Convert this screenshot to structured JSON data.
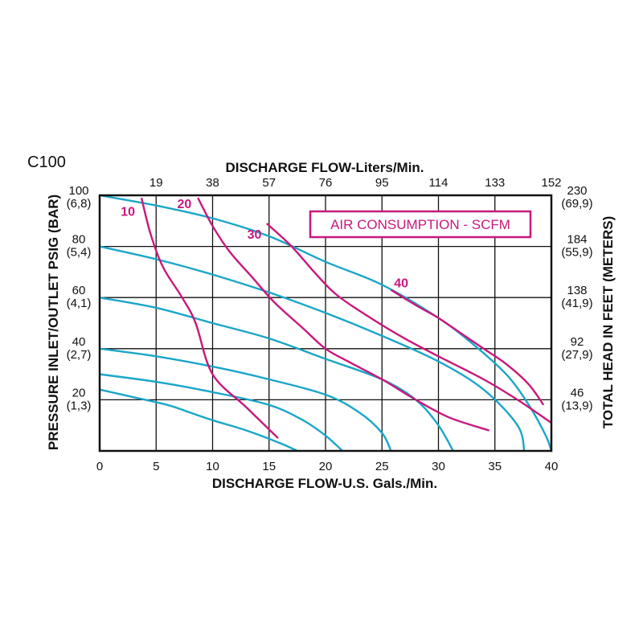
{
  "chart_data": {
    "type": "line",
    "title": "C100",
    "xlabel": "DISCHARGE FLOW-U.S. Gals./Min.",
    "x2label": "DISCHARGE FLOW-Liters/Min.",
    "ylabel": "PRESSURE INLET/OUTLET PSIG (BAR)",
    "y2label": "TOTAL HEAD IN FEET (METERS)",
    "legend_title": "AIR CONSUMPTION - SCFM",
    "xlim": [
      0,
      40
    ],
    "ylim": [
      0,
      100
    ],
    "grid": true,
    "x_ticks": [
      0,
      5,
      10,
      15,
      20,
      25,
      30,
      35,
      40
    ],
    "x_tick_labels": [
      "0",
      "5",
      "10",
      "15",
      "20",
      "25",
      "30",
      "35",
      "40"
    ],
    "x2_ticks": [
      5,
      10,
      15,
      20,
      25,
      30,
      35,
      40
    ],
    "x2_tick_labels": [
      "19",
      "38",
      "57",
      "76",
      "95",
      "114",
      "133",
      "152"
    ],
    "y_ticks": [
      20,
      40,
      60,
      80,
      100
    ],
    "y_tick_labels": [
      "20",
      "40",
      "60",
      "80",
      "100"
    ],
    "y_tick_sublabels": [
      "(1,3)",
      "(2,7)",
      "(4,1)",
      "(5,4)",
      "(6,8)"
    ],
    "y2_tick_labels": [
      "46",
      "92",
      "138",
      "184",
      "230"
    ],
    "y2_tick_sublabels": [
      "(13,9)",
      "(27,9)",
      "(41,9)",
      "(55,9)",
      "(69,9)"
    ],
    "colors": {
      "performance": "#1aa6c8",
      "air": "#c8187d",
      "grid": "#111111"
    },
    "performance_curves": [
      {
        "points": [
          [
            0,
            100
          ],
          [
            5,
            96
          ],
          [
            10,
            91
          ],
          [
            15,
            84
          ],
          [
            20,
            74
          ],
          [
            25,
            65
          ],
          [
            30,
            52
          ],
          [
            33,
            42
          ],
          [
            36,
            30
          ],
          [
            38,
            18
          ],
          [
            39.5,
            6
          ],
          [
            40,
            0
          ]
        ]
      },
      {
        "points": [
          [
            0,
            80
          ],
          [
            5,
            75
          ],
          [
            10,
            69
          ],
          [
            15,
            62
          ],
          [
            20,
            54
          ],
          [
            25,
            45
          ],
          [
            30,
            35
          ],
          [
            34,
            24
          ],
          [
            37,
            10
          ],
          [
            37.6,
            0
          ]
        ]
      },
      {
        "points": [
          [
            0,
            60
          ],
          [
            5,
            56
          ],
          [
            10,
            50
          ],
          [
            15,
            44
          ],
          [
            20,
            36
          ],
          [
            25,
            28
          ],
          [
            28,
            20
          ],
          [
            30,
            10
          ],
          [
            31.3,
            0
          ]
        ]
      },
      {
        "points": [
          [
            0,
            40
          ],
          [
            5,
            37
          ],
          [
            10,
            33
          ],
          [
            15,
            28
          ],
          [
            20,
            22
          ],
          [
            23,
            15
          ],
          [
            25,
            7
          ],
          [
            25.8,
            0
          ]
        ]
      },
      {
        "points": [
          [
            0,
            30
          ],
          [
            5,
            27
          ],
          [
            10,
            23
          ],
          [
            15,
            18
          ],
          [
            18,
            12
          ],
          [
            20,
            6
          ],
          [
            21.5,
            0
          ]
        ]
      },
      {
        "points": [
          [
            0,
            24
          ],
          [
            3,
            21
          ],
          [
            6,
            18
          ],
          [
            8,
            15
          ],
          [
            10,
            12
          ],
          [
            13,
            8
          ],
          [
            16,
            3
          ],
          [
            17.5,
            0
          ]
        ]
      }
    ],
    "series": [
      {
        "name": "10",
        "points": [
          [
            3.7,
            99
          ],
          [
            4.5,
            85
          ],
          [
            5.6,
            72
          ],
          [
            7.3,
            60
          ],
          [
            8.5,
            50
          ],
          [
            10,
            30
          ],
          [
            13,
            17
          ],
          [
            15.8,
            5
          ]
        ],
        "label_at": [
          2.5,
          92
        ]
      },
      {
        "name": "20",
        "points": [
          [
            8.7,
            99
          ],
          [
            10,
            88
          ],
          [
            11.5,
            78
          ],
          [
            13.5,
            68
          ],
          [
            15.5,
            58
          ],
          [
            18,
            48
          ],
          [
            20,
            40
          ],
          [
            22,
            35
          ],
          [
            25,
            28
          ],
          [
            28,
            20
          ],
          [
            31,
            13
          ],
          [
            34.5,
            8
          ]
        ],
        "label_at": [
          7.5,
          95
        ]
      },
      {
        "name": "30",
        "points": [
          [
            14.8,
            89
          ],
          [
            17,
            80
          ],
          [
            19,
            70
          ],
          [
            21,
            61
          ],
          [
            24,
            52
          ],
          [
            27,
            44
          ],
          [
            30,
            37
          ],
          [
            34,
            28
          ],
          [
            37,
            20
          ],
          [
            40,
            11
          ]
        ],
        "label_at": [
          13.7,
          83
        ]
      },
      {
        "name": "40",
        "points": [
          [
            25.8,
            63
          ],
          [
            28,
            57
          ],
          [
            30,
            52
          ],
          [
            32,
            46
          ],
          [
            34,
            40
          ],
          [
            36,
            34
          ],
          [
            38,
            26
          ],
          [
            39.3,
            18
          ]
        ],
        "label_at": [
          26.7,
          64
        ]
      }
    ]
  }
}
